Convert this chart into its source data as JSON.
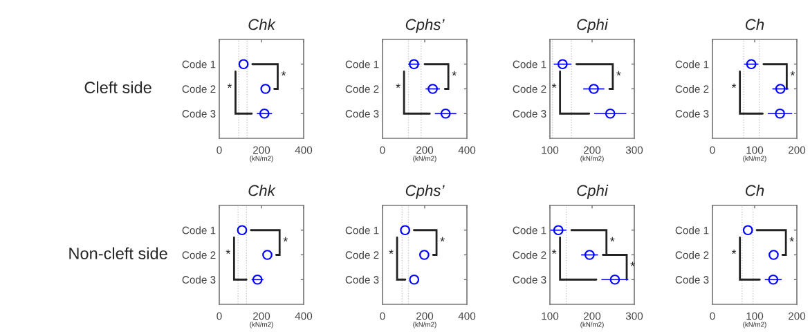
{
  "chart_data": [
    {
      "type": "scatter",
      "orientation": "horizontal",
      "marker": "circle",
      "title": "Chk",
      "xlabel": "(kN/m2)",
      "categories": [
        "Code 1",
        "Code 2",
        "Code 3"
      ],
      "xlim": [
        0,
        400
      ],
      "xticks": [
        0,
        200,
        400
      ],
      "series": [
        {
          "color": "#0000ff",
          "values": [
            115,
            219,
            214
          ],
          "errors": [
            null,
            null,
            36
          ]
        }
      ],
      "ref_lines": [
        {
          "axis": "x",
          "value": 92,
          "color": "#c8c8c8",
          "line_style": "dotted"
        },
        {
          "axis": "x",
          "value": 132,
          "color": "#c8c8c8",
          "line_style": "dotted"
        }
      ],
      "annotations": [
        "Cleft side",
        "*",
        "*"
      ]
    },
    {
      "type": "scatter",
      "orientation": "horizontal",
      "marker": "circle",
      "title": "Cphs’",
      "xlabel": "(kN/m2)",
      "categories": [
        "Code 1",
        "Code 2",
        "Code 3"
      ],
      "xlim": [
        0,
        400
      ],
      "xticks": [
        0,
        200,
        400
      ],
      "series": [
        {
          "color": "#0000ff",
          "values": [
            149,
            238,
            299
          ],
          "errors": [
            27,
            34,
            51
          ]
        }
      ],
      "ref_lines": [
        {
          "axis": "x",
          "value": 123,
          "color": "#c8c8c8",
          "line_style": "dotted"
        },
        {
          "axis": "x",
          "value": 183,
          "color": "#c8c8c8",
          "line_style": "dotted"
        }
      ],
      "annotations": [
        "*",
        "*"
      ]
    },
    {
      "type": "scatter",
      "orientation": "horizontal",
      "marker": "circle",
      "title": "Cphi",
      "xlabel": "(kN/m2)",
      "categories": [
        "Code 1",
        "Code 2",
        "Code 3"
      ],
      "xlim": [
        100,
        300
      ],
      "xticks": [
        100,
        200,
        300
      ],
      "series": [
        {
          "color": "#0000ff",
          "values": [
            130,
            204,
            243
          ],
          "errors": [
            21,
            25,
            38
          ]
        }
      ],
      "ref_lines": [
        {
          "axis": "x",
          "value": 106,
          "color": "#c8c8c8",
          "line_style": "dotted"
        },
        {
          "axis": "x",
          "value": 151,
          "color": "#c8c8c8",
          "line_style": "dotted"
        }
      ],
      "annotations": [
        "*",
        "*"
      ]
    },
    {
      "type": "scatter",
      "orientation": "horizontal",
      "marker": "circle",
      "title": "Ch",
      "xlabel": "(kN/m2)",
      "categories": [
        "Code 1",
        "Code 2",
        "Code 3"
      ],
      "xlim": [
        0,
        200
      ],
      "xticks": [
        0,
        100,
        200
      ],
      "series": [
        {
          "color": "#0000ff",
          "values": [
            92,
            161,
            160
          ],
          "errors": [
            17,
            19,
            29
          ]
        }
      ],
      "ref_lines": [
        {
          "axis": "x",
          "value": 74,
          "color": "#c8c8c8",
          "line_style": "dotted"
        },
        {
          "axis": "x",
          "value": 111,
          "color": "#c8c8c8",
          "line_style": "dotted"
        }
      ],
      "annotations": [
        "*",
        "*"
      ]
    },
    {
      "type": "scatter",
      "orientation": "horizontal",
      "marker": "circle",
      "title": "Chk",
      "xlabel": "(kN/m2)",
      "categories": [
        "Code 1",
        "Code 2",
        "Code 3"
      ],
      "xlim": [
        0,
        400
      ],
      "xticks": [
        0,
        200,
        400
      ],
      "series": [
        {
          "color": "#0000ff",
          "values": [
            108,
            228,
            181
          ],
          "errors": [
            null,
            null,
            28
          ]
        }
      ],
      "ref_lines": [
        {
          "axis": "x",
          "value": 89,
          "color": "#c8c8c8",
          "line_style": "dotted"
        },
        {
          "axis": "x",
          "value": 129,
          "color": "#c8c8c8",
          "line_style": "dotted"
        }
      ],
      "annotations": [
        "Non-cleft side",
        "*",
        "*"
      ]
    },
    {
      "type": "scatter",
      "orientation": "horizontal",
      "marker": "circle",
      "title": "Cphs’",
      "xlabel": "(kN/m2)",
      "categories": [
        "Code 1",
        "Code 2",
        "Code 3"
      ],
      "xlim": [
        0,
        400
      ],
      "xticks": [
        0,
        200,
        400
      ],
      "series": [
        {
          "color": "#0000ff",
          "values": [
            107,
            198,
            150
          ],
          "errors": [
            null,
            null,
            null
          ]
        }
      ],
      "ref_lines": [
        {
          "axis": "x",
          "value": 93,
          "color": "#c8c8c8",
          "line_style": "dotted"
        },
        {
          "axis": "x",
          "value": 123,
          "color": "#c8c8c8",
          "line_style": "dotted"
        }
      ],
      "annotations": [
        "*",
        "*"
      ]
    },
    {
      "type": "scatter",
      "orientation": "horizontal",
      "marker": "circle",
      "title": "Cphi",
      "xlabel": "(kN/m2)",
      "categories": [
        "Code 1",
        "Code 2",
        "Code 3"
      ],
      "xlim": [
        100,
        300
      ],
      "xticks": [
        100,
        200,
        300
      ],
      "series": [
        {
          "color": "#0000ff",
          "values": [
            120,
            194,
            254
          ],
          "errors": [
            19,
            20,
            32
          ]
        }
      ],
      "ref_lines": [
        {
          "axis": "x",
          "value": 139,
          "color": "#c8c8c8",
          "line_style": "dotted"
        }
      ],
      "annotations": [
        "*",
        "*",
        "*"
      ]
    },
    {
      "type": "scatter",
      "orientation": "horizontal",
      "marker": "circle",
      "title": "Ch",
      "xlabel": "(kN/m2)",
      "categories": [
        "Code 1",
        "Code 2",
        "Code 3"
      ],
      "xlim": [
        0,
        200
      ],
      "xticks": [
        0,
        100,
        200
      ],
      "series": [
        {
          "color": "#0000ff",
          "values": [
            84,
            145,
            144
          ],
          "errors": [
            null,
            null,
            20
          ]
        }
      ],
      "ref_lines": [
        {
          "axis": "x",
          "value": 70,
          "color": "#c8c8c8",
          "line_style": "dotted"
        },
        {
          "axis": "x",
          "value": 96,
          "color": "#c8c8c8",
          "line_style": "dotted"
        }
      ],
      "annotations": [
        "*",
        "*"
      ]
    }
  ]
}
